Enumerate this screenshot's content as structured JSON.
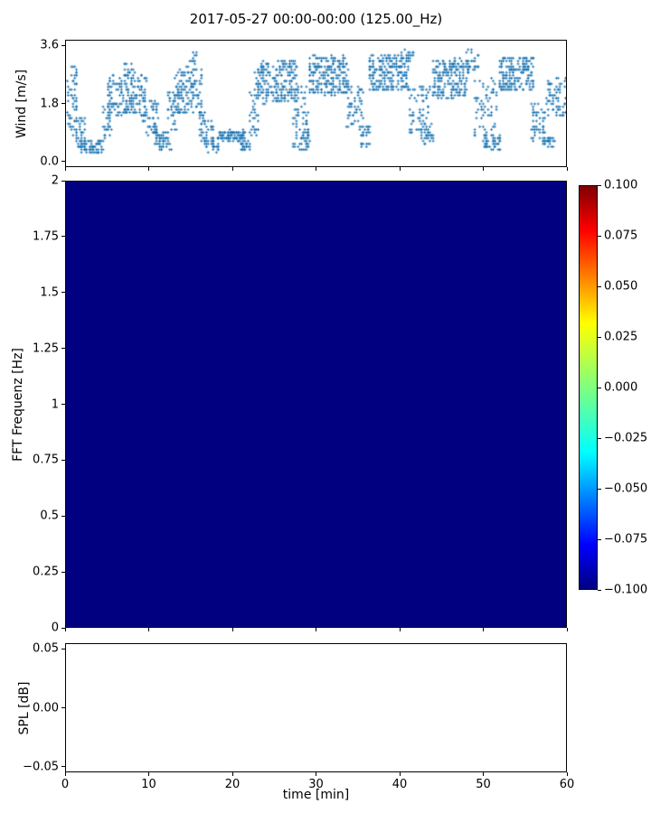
{
  "title": "2017-05-27 00:00-00:00 (125.00_Hz)",
  "chart_data": [
    {
      "type": "scatter",
      "name": "wind-speed",
      "ylabel": "Wind [m/s]",
      "xlim": [
        0,
        60
      ],
      "ylim": [
        0.0,
        3.6
      ],
      "yticks": {
        "values": [
          0.0,
          1.8,
          3.6
        ],
        "labels": [
          "0.0",
          "1.8",
          "3.6"
        ]
      },
      "marker": "+",
      "marker_color": "#1f77b4",
      "segment_format": [
        "t_start_min",
        "t_end_min",
        "wind_min_ms",
        "wind_max_ms",
        "n_points"
      ],
      "series_segments": [
        [
          0.0,
          1.3,
          0.8,
          3.0,
          55
        ],
        [
          1.0,
          2.2,
          0.4,
          1.5,
          35
        ],
        [
          1.8,
          4.6,
          0.25,
          0.65,
          70
        ],
        [
          4.3,
          5.6,
          0.6,
          1.9,
          30
        ],
        [
          5.0,
          9.6,
          1.4,
          2.7,
          170
        ],
        [
          6.8,
          8.2,
          2.6,
          3.1,
          18
        ],
        [
          9.2,
          11.0,
          0.8,
          1.9,
          55
        ],
        [
          10.6,
          12.6,
          0.35,
          0.95,
          50
        ],
        [
          12.2,
          13.2,
          1.0,
          2.2,
          28
        ],
        [
          12.9,
          16.3,
          1.5,
          2.9,
          140
        ],
        [
          14.4,
          15.6,
          2.9,
          3.4,
          14
        ],
        [
          15.9,
          17.6,
          0.5,
          1.5,
          40
        ],
        [
          16.6,
          18.2,
          0.3,
          0.7,
          32
        ],
        [
          18.1,
          21.4,
          0.65,
          0.95,
          95
        ],
        [
          20.9,
          22.1,
          0.35,
          0.6,
          26
        ],
        [
          21.9,
          23.1,
          0.8,
          2.2,
          30
        ],
        [
          22.6,
          27.6,
          1.8,
          3.2,
          210
        ],
        [
          27.1,
          29.1,
          0.4,
          2.4,
          65
        ],
        [
          28.2,
          29.2,
          0.3,
          0.9,
          22
        ],
        [
          29.1,
          33.9,
          2.1,
          3.3,
          210
        ],
        [
          33.6,
          35.6,
          1.0,
          2.4,
          55
        ],
        [
          35.3,
          36.4,
          0.45,
          1.1,
          26
        ],
        [
          36.3,
          41.1,
          2.2,
          3.4,
          210
        ],
        [
          40.4,
          41.6,
          3.1,
          3.55,
          12
        ],
        [
          41.1,
          43.6,
          0.9,
          2.4,
          60
        ],
        [
          42.6,
          44.1,
          0.5,
          1.2,
          32
        ],
        [
          43.9,
          48.1,
          2.0,
          3.2,
          180
        ],
        [
          48.0,
          49.4,
          2.8,
          3.55,
          30
        ],
        [
          48.9,
          51.6,
          0.6,
          2.6,
          65
        ],
        [
          50.1,
          52.1,
          0.35,
          0.8,
          45
        ],
        [
          51.9,
          56.1,
          2.2,
          3.3,
          180
        ],
        [
          55.6,
          57.6,
          0.6,
          1.8,
          48
        ],
        [
          57.1,
          58.6,
          0.4,
          0.9,
          26
        ],
        [
          57.6,
          60.0,
          1.4,
          2.6,
          65
        ]
      ]
    },
    {
      "type": "heatmap",
      "name": "fft-spectrogram",
      "ylabel": "FFT Frequenz [Hz]",
      "xlim": [
        0,
        60
      ],
      "ylim": [
        0,
        2
      ],
      "yticks": {
        "values": [
          0,
          0.25,
          0.5,
          0.75,
          1,
          1.25,
          1.5,
          1.75,
          2
        ],
        "labels": [
          "0",
          "0.25",
          "0.5",
          "0.75",
          "1",
          "1.25",
          "1.5",
          "1.75",
          "2"
        ]
      },
      "uniform_value": -0.1,
      "fill_color": "#000080",
      "colorbar": {
        "cmap": "jet",
        "vmin": -0.1,
        "vmax": 0.1,
        "ticks": {
          "values": [
            0.1,
            0.075,
            0.05,
            0.025,
            0,
            -0.025,
            -0.05,
            -0.075,
            -0.1
          ],
          "labels": [
            "0.100",
            "0.075",
            "0.050",
            "0.025",
            "0.000",
            "−0.025",
            "−0.050",
            "−0.075",
            "−0.100"
          ]
        },
        "gradient_stops_top_to_bottom": [
          "#800000",
          "#ff0000",
          "#ffff00",
          "#7fff7f",
          "#00ffff",
          "#0000ff",
          "#000080"
        ]
      }
    },
    {
      "type": "line",
      "name": "spl",
      "ylabel": "SPL [dB]",
      "xlabel": "time [min]",
      "xlim": [
        0,
        60
      ],
      "ylim": [
        -0.05,
        0.05
      ],
      "yticks": {
        "values": [
          -0.05,
          0,
          0.05
        ],
        "labels": [
          "−0.05",
          "0.00",
          "0.05"
        ]
      },
      "xticks": {
        "values": [
          0,
          10,
          20,
          30,
          40,
          50,
          60
        ],
        "labels": [
          "0",
          "10",
          "20",
          "30",
          "40",
          "50",
          "60"
        ]
      },
      "values": []
    }
  ]
}
